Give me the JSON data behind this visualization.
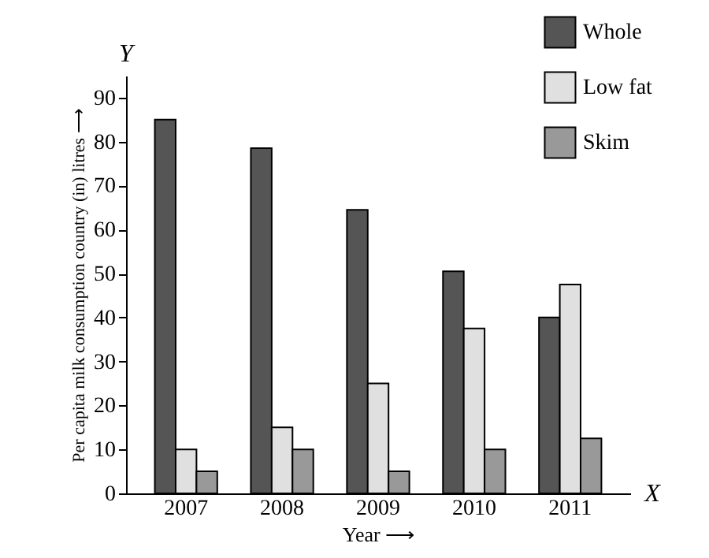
{
  "chart_data": {
    "type": "bar",
    "xlabel": "Year ⟶",
    "ylabel": "Per capita milk consumption country (in) litres ⟶",
    "categories": [
      "2007",
      "2008",
      "2009",
      "2010",
      "2011"
    ],
    "series": [
      {
        "name": "Whole",
        "color": "#555555",
        "values": [
          85,
          78.5,
          64.5,
          50.5,
          40
        ]
      },
      {
        "name": "Low fat",
        "color": "#e0e0e0",
        "values": [
          10,
          15,
          25,
          37.5,
          47.5
        ]
      },
      {
        "name": "Skim",
        "color": "#999999",
        "values": [
          5,
          10,
          5,
          10,
          12.5
        ]
      }
    ],
    "ylim": [
      0,
      95
    ],
    "yticks": [
      0,
      10,
      20,
      30,
      40,
      50,
      60,
      70,
      80,
      90
    ],
    "grid": false,
    "legend": "top right",
    "annotations": [
      "Y",
      "X"
    ]
  }
}
